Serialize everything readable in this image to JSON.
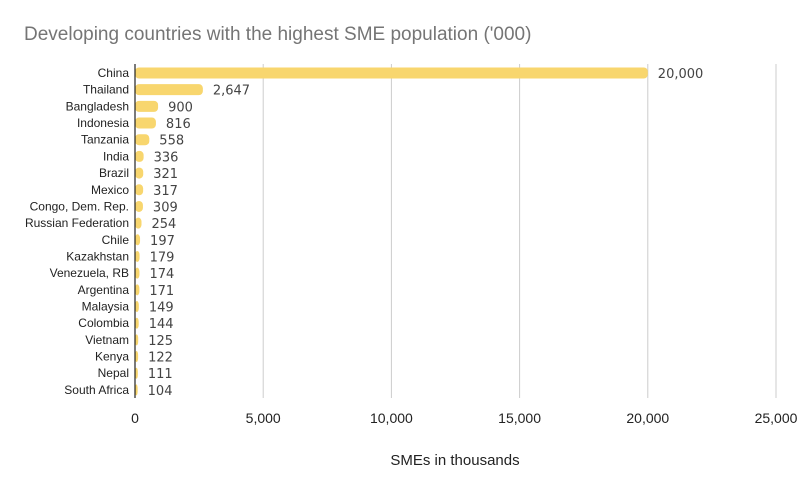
{
  "chart_data": {
    "type": "bar",
    "orientation": "horizontal",
    "title": "Developing countries with the highest SME population ('000)",
    "xlabel": "SMEs in thousands",
    "ylabel": "",
    "categories": [
      "China",
      "Thailand",
      "Bangladesh",
      "Indonesia",
      "Tanzania",
      "India",
      "Brazil",
      "Mexico",
      "Congo, Dem. Rep.",
      "Russian Federation",
      "Chile",
      "Kazakhstan",
      "Venezuela, RB",
      "Argentina",
      "Malaysia",
      "Colombia",
      "Vietnam",
      "Kenya",
      "Nepal",
      "South Africa"
    ],
    "values": [
      20000,
      2647,
      900,
      816,
      558,
      336,
      321,
      317,
      309,
      254,
      197,
      179,
      174,
      171,
      149,
      144,
      125,
      122,
      111,
      104
    ],
    "value_labels": [
      "20,000",
      "2,647",
      "900",
      "816",
      "558",
      "336",
      "321",
      "317",
      "309",
      "254",
      "197",
      "179",
      "174",
      "171",
      "149",
      "144",
      "125",
      "122",
      "111",
      "104"
    ],
    "xlim": [
      0,
      25000
    ],
    "xticks": [
      0,
      5000,
      10000,
      15000,
      20000,
      25000
    ],
    "xtick_labels": [
      "0",
      "5,000",
      "10,000",
      "15,000",
      "20,000",
      "25,000"
    ],
    "grid": true,
    "legend": "none",
    "colors": {
      "bar": "#f8d66e",
      "grid": "#cccccc",
      "axis": "#222222"
    }
  }
}
